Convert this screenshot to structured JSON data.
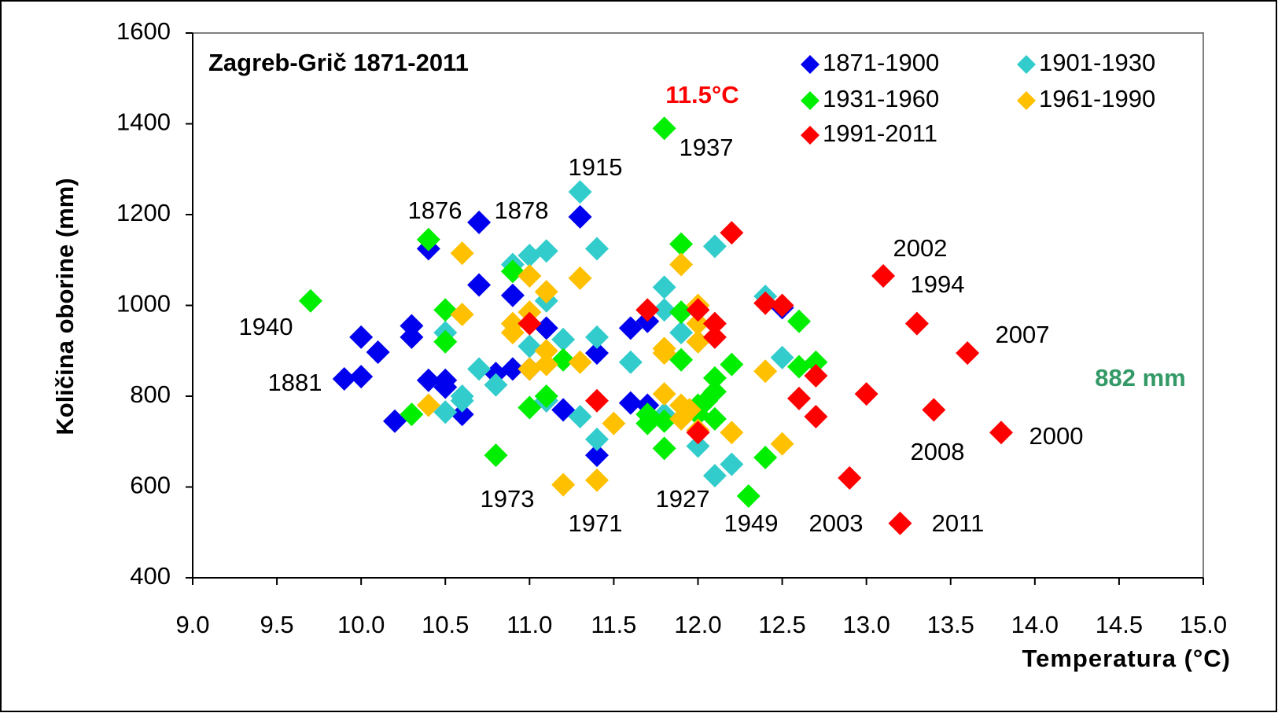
{
  "chart_data": {
    "type": "scatter",
    "title": "Zagreb-Grič 1871-2011",
    "x_label": "Temperatura (°C)",
    "y_label": "Količina oborine (mm)",
    "xlim": [
      9,
      15
    ],
    "xticks": [
      {
        "value": 9,
        "label": "9.0"
      },
      9.5,
      {
        "value": 10,
        "label": "10.0"
      },
      10.5,
      {
        "value": 11,
        "label": "11.0"
      },
      11.5,
      {
        "value": 12,
        "label": "12.0"
      },
      12.5,
      {
        "value": 13,
        "label": "13.0"
      },
      13.5,
      {
        "value": 14,
        "label": "14.0"
      },
      14.5,
      {
        "value": 15,
        "label": "15.0"
      }
    ],
    "ylim": [
      400,
      1600
    ],
    "yticks": [
      400,
      600,
      800,
      1000,
      1200,
      1400,
      1600
    ],
    "grid": false,
    "legend": "top-right",
    "series": [
      {
        "name": "1871-1900",
        "color": "#0000ee",
        "x": [
          9.9,
          10.0,
          10.0,
          10.1,
          10.2,
          10.3,
          10.3,
          10.4,
          10.4,
          10.5,
          10.5,
          10.6,
          10.7,
          10.7,
          10.8,
          10.9,
          10.9,
          11.1,
          11.2,
          11.3,
          11.4,
          11.4,
          11.6,
          11.6,
          11.7,
          11.7,
          11.1,
          12.5,
          11.0
        ],
        "values": [
          838,
          843,
          930,
          897,
          745,
          955,
          930,
          835,
          1125,
          835,
          820,
          760,
          1183,
          1045,
          850,
          860,
          1022,
          950,
          770,
          1195,
          895,
          670,
          785,
          950,
          965,
          780,
          790,
          995,
          860
        ]
      },
      {
        "name": "1901-1930",
        "color": "#33cccc",
        "x": [
          10.5,
          10.5,
          10.6,
          10.6,
          10.7,
          10.8,
          10.9,
          11.0,
          11.0,
          11.1,
          11.1,
          11.1,
          11.2,
          11.3,
          11.3,
          11.4,
          11.4,
          11.4,
          11.6,
          11.8,
          11.8,
          11.9,
          12.0,
          12.1,
          12.1,
          12.2,
          12.4,
          12.5,
          11.8,
          12.0
        ],
        "values": [
          765,
          940,
          790,
          800,
          860,
          825,
          1090,
          1110,
          910,
          1120,
          1010,
          790,
          925,
          755,
          1250,
          1125,
          930,
          705,
          875,
          1040,
          990,
          940,
          690,
          1130,
          625,
          650,
          1020,
          885,
          760,
          920
        ]
      },
      {
        "name": "1931-1960",
        "color": "#00ee00",
        "x": [
          9.7,
          10.3,
          10.4,
          10.5,
          10.5,
          10.8,
          10.9,
          11.0,
          11.1,
          11.2,
          11.7,
          11.7,
          11.8,
          11.8,
          11.8,
          11.9,
          11.9,
          12.0,
          12.0,
          12.1,
          12.1,
          12.1,
          12.2,
          12.3,
          12.4,
          12.6,
          12.6,
          12.7,
          11.9,
          12.05
        ],
        "values": [
          1010,
          760,
          1145,
          990,
          920,
          670,
          1075,
          775,
          800,
          880,
          760,
          740,
          1390,
          685,
          745,
          1135,
          985,
          760,
          780,
          840,
          810,
          750,
          870,
          580,
          665,
          965,
          865,
          875,
          880,
          790
        ]
      },
      {
        "name": "1961-1990",
        "color": "#ffc000",
        "x": [
          10.4,
          10.6,
          10.6,
          10.9,
          10.9,
          11.0,
          11.0,
          11.0,
          11.1,
          11.1,
          11.1,
          11.2,
          11.3,
          11.3,
          11.4,
          11.5,
          11.8,
          11.8,
          11.8,
          11.9,
          11.9,
          11.9,
          12.0,
          12.0,
          12.0,
          12.0,
          12.2,
          12.4,
          12.5,
          11.95
        ],
        "values": [
          780,
          1115,
          980,
          940,
          960,
          1065,
          985,
          860,
          1030,
          900,
          870,
          605,
          1060,
          875,
          615,
          740,
          905,
          805,
          895,
          1090,
          780,
          750,
          1000,
          920,
          725,
          960,
          720,
          855,
          695,
          770
        ]
      },
      {
        "name": "1991-2011",
        "color": "#ff0000",
        "x": [
          11.0,
          11.4,
          11.7,
          12.0,
          12.0,
          12.1,
          12.1,
          12.2,
          12.4,
          12.5,
          12.6,
          12.7,
          12.7,
          12.9,
          13.0,
          13.1,
          13.2,
          13.3,
          13.4,
          13.6,
          13.8
        ],
        "values": [
          960,
          790,
          990,
          990,
          720,
          960,
          930,
          1160,
          1005,
          1000,
          795,
          845,
          755,
          620,
          805,
          1065,
          520,
          960,
          770,
          895,
          720
        ]
      }
    ],
    "annotations": [
      "11.5°C",
      "882 mm",
      "1937",
      "1915",
      "1876",
      "1878",
      "2002",
      "1994",
      "1940",
      "2007",
      "1881",
      "2008",
      "2000",
      "1973",
      "1927",
      "1971",
      "1949",
      "2003",
      "2011"
    ]
  }
}
